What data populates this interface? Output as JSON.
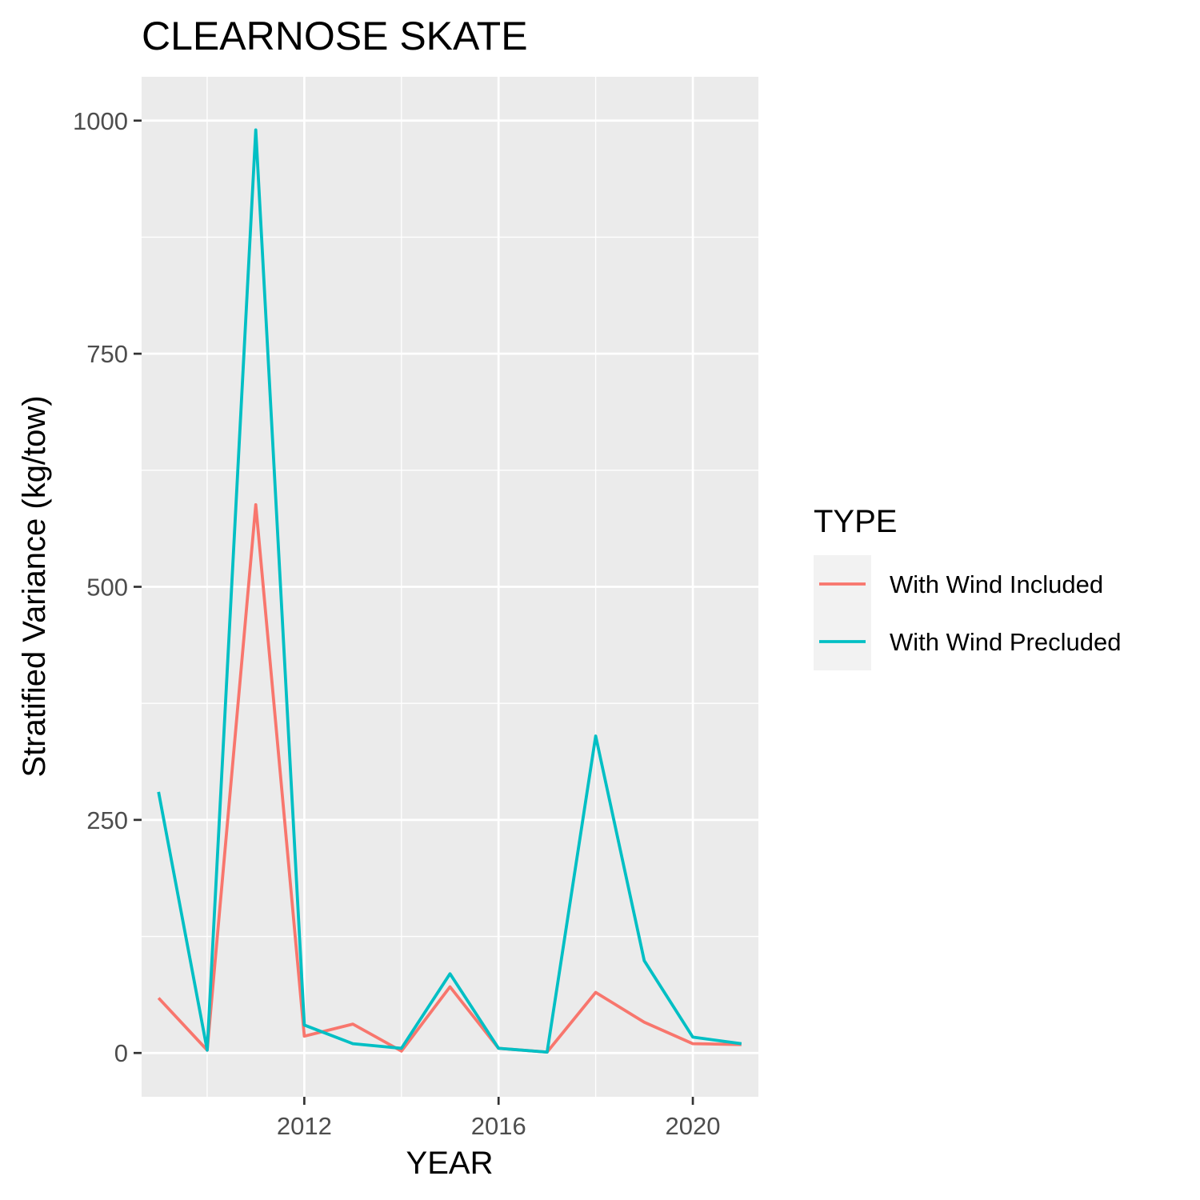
{
  "chart_data": {
    "type": "line",
    "title": "CLEARNOSE SKATE",
    "xlabel": "YEAR",
    "ylabel": "Stratified Variance (kg/tow)",
    "x": [
      2009,
      2010,
      2011,
      2012,
      2013,
      2014,
      2015,
      2016,
      2017,
      2018,
      2019,
      2020,
      2021
    ],
    "xlim": [
      2008.65,
      2021.35
    ],
    "ylim": [
      -47,
      1047
    ],
    "x_ticks": [
      2012,
      2016,
      2020
    ],
    "x_tick_labels": [
      "2012",
      "2016",
      "2020"
    ],
    "y_ticks": [
      0,
      250,
      500,
      750,
      1000
    ],
    "y_tick_labels": [
      "0",
      "250",
      "500",
      "750",
      "1000"
    ],
    "grid": true,
    "legend": {
      "title": "TYPE",
      "placement": "right"
    },
    "series": [
      {
        "name": "With Wind Included",
        "color": "#F8766D",
        "values": [
          59,
          3,
          588,
          18,
          31,
          2,
          71,
          5,
          1,
          65,
          33,
          10,
          9
        ]
      },
      {
        "name": "With Wind Precluded",
        "color": "#00BFC4",
        "values": [
          280,
          3,
          990,
          30,
          10,
          5,
          85,
          5,
          1,
          340,
          99,
          17,
          10
        ]
      }
    ]
  }
}
